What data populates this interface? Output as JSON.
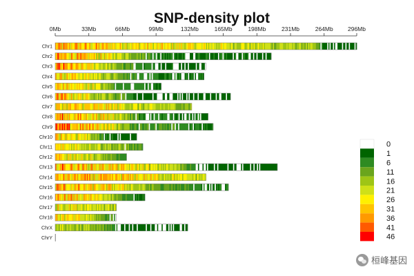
{
  "chart_data": {
    "type": "heatmap",
    "title": "SNP-density plot",
    "x_tick_labels": [
      "0Mb",
      "33Mb",
      "66Mb",
      "99Mb",
      "132Mb",
      "165Mb",
      "198Mb",
      "231Mb",
      "264Mb",
      "296Mb"
    ],
    "x_ticks_mb": [
      0,
      33,
      66,
      99,
      132,
      165,
      198,
      231,
      264,
      296
    ],
    "xlim_mb": [
      0,
      296
    ],
    "chromosomes": [
      {
        "name": "Chr1",
        "length_mb": 296,
        "profile": [
          [
            0,
            34
          ],
          [
            0.3,
            28
          ],
          [
            0.6,
            24
          ],
          [
            0.85,
            18
          ],
          [
            0.9,
            3
          ],
          [
            1,
            2
          ]
        ]
      },
      {
        "name": "Chr2",
        "length_mb": 212,
        "profile": [
          [
            0,
            36
          ],
          [
            0.3,
            24
          ],
          [
            0.5,
            6
          ],
          [
            0.85,
            5
          ],
          [
            1,
            4
          ]
        ]
      },
      {
        "name": "Chr3",
        "length_mb": 148,
        "profile": [
          [
            0,
            38
          ],
          [
            0.3,
            24
          ],
          [
            0.5,
            10
          ],
          [
            0.7,
            5
          ],
          [
            1,
            4
          ]
        ]
      },
      {
        "name": "Chr4",
        "length_mb": 146,
        "profile": [
          [
            0,
            32
          ],
          [
            0.25,
            26
          ],
          [
            0.5,
            10
          ],
          [
            0.75,
            6
          ],
          [
            1,
            5
          ]
        ]
      },
      {
        "name": "Chr5",
        "length_mb": 104,
        "profile": [
          [
            0,
            32
          ],
          [
            0.4,
            24
          ],
          [
            0.6,
            10
          ],
          [
            1,
            5
          ]
        ]
      },
      {
        "name": "Chr6",
        "length_mb": 172,
        "profile": [
          [
            0,
            36
          ],
          [
            0.3,
            18
          ],
          [
            0.5,
            4
          ],
          [
            1,
            3
          ]
        ]
      },
      {
        "name": "Chr7",
        "length_mb": 134,
        "profile": [
          [
            0,
            30
          ],
          [
            0.4,
            28
          ],
          [
            0.6,
            22
          ],
          [
            1,
            17
          ]
        ]
      },
      {
        "name": "Chr8",
        "length_mb": 150,
        "profile": [
          [
            0,
            36
          ],
          [
            0.4,
            26
          ],
          [
            0.55,
            8
          ],
          [
            1,
            5
          ]
        ]
      },
      {
        "name": "Chr9",
        "length_mb": 155,
        "profile": [
          [
            0,
            38
          ],
          [
            0.3,
            30
          ],
          [
            0.5,
            12
          ],
          [
            1,
            6
          ]
        ]
      },
      {
        "name": "Chr10",
        "length_mb": 80,
        "profile": [
          [
            0,
            32
          ],
          [
            0.4,
            26
          ],
          [
            0.6,
            6
          ],
          [
            1,
            4
          ]
        ]
      },
      {
        "name": "Chr11",
        "length_mb": 86,
        "profile": [
          [
            0,
            30
          ],
          [
            0.5,
            22
          ],
          [
            0.8,
            14
          ],
          [
            1,
            10
          ]
        ]
      },
      {
        "name": "Chr12",
        "length_mb": 70,
        "profile": [
          [
            0,
            30
          ],
          [
            0.5,
            24
          ],
          [
            0.8,
            12
          ],
          [
            1,
            8
          ]
        ]
      },
      {
        "name": "Chr13",
        "length_mb": 218,
        "profile": [
          [
            0,
            36
          ],
          [
            0.3,
            28
          ],
          [
            0.55,
            20
          ],
          [
            0.65,
            3
          ],
          [
            1,
            2
          ]
        ]
      },
      {
        "name": "Chr14",
        "length_mb": 148,
        "profile": [
          [
            0,
            32
          ],
          [
            0.5,
            30
          ],
          [
            0.8,
            24
          ],
          [
            1,
            22
          ]
        ]
      },
      {
        "name": "Chr15",
        "length_mb": 170,
        "profile": [
          [
            0,
            34
          ],
          [
            0.4,
            26
          ],
          [
            0.6,
            12
          ],
          [
            1,
            5
          ]
        ]
      },
      {
        "name": "Chr16",
        "length_mb": 88,
        "profile": [
          [
            0,
            34
          ],
          [
            0.5,
            26
          ],
          [
            0.75,
            10
          ],
          [
            1,
            5
          ]
        ]
      },
      {
        "name": "Chr17",
        "length_mb": 60,
        "profile": [
          [
            0,
            28
          ],
          [
            0.6,
            26
          ],
          [
            1,
            20
          ]
        ]
      },
      {
        "name": "Chr18",
        "length_mb": 60,
        "profile": [
          [
            0,
            30
          ],
          [
            0.5,
            24
          ],
          [
            0.8,
            12
          ],
          [
            1,
            8
          ]
        ]
      },
      {
        "name": "ChrX",
        "length_mb": 130,
        "profile": [
          [
            0,
            22
          ],
          [
            0.3,
            16
          ],
          [
            0.45,
            8
          ],
          [
            0.55,
            1
          ],
          [
            1,
            1
          ]
        ]
      },
      {
        "name": "ChrY",
        "length_mb": 0.5,
        "profile": [
          [
            0,
            0
          ],
          [
            1,
            0
          ]
        ]
      }
    ],
    "bins_per_mb": 0.9,
    "legend": {
      "labels": [
        "0",
        "1",
        "6",
        "11",
        "16",
        "21",
        "26",
        "31",
        "36",
        "41",
        "46"
      ],
      "colors": [
        "#ffffff",
        "#006400",
        "#2e8b22",
        "#6aa51d",
        "#9ec516",
        "#cfe018",
        "#fff000",
        "#ffc400",
        "#ff9a00",
        "#ff5a00",
        "#ff0000"
      ],
      "position": "right"
    }
  },
  "watermark": {
    "text": "桓峰基因",
    "icon": "wechat-icon"
  }
}
